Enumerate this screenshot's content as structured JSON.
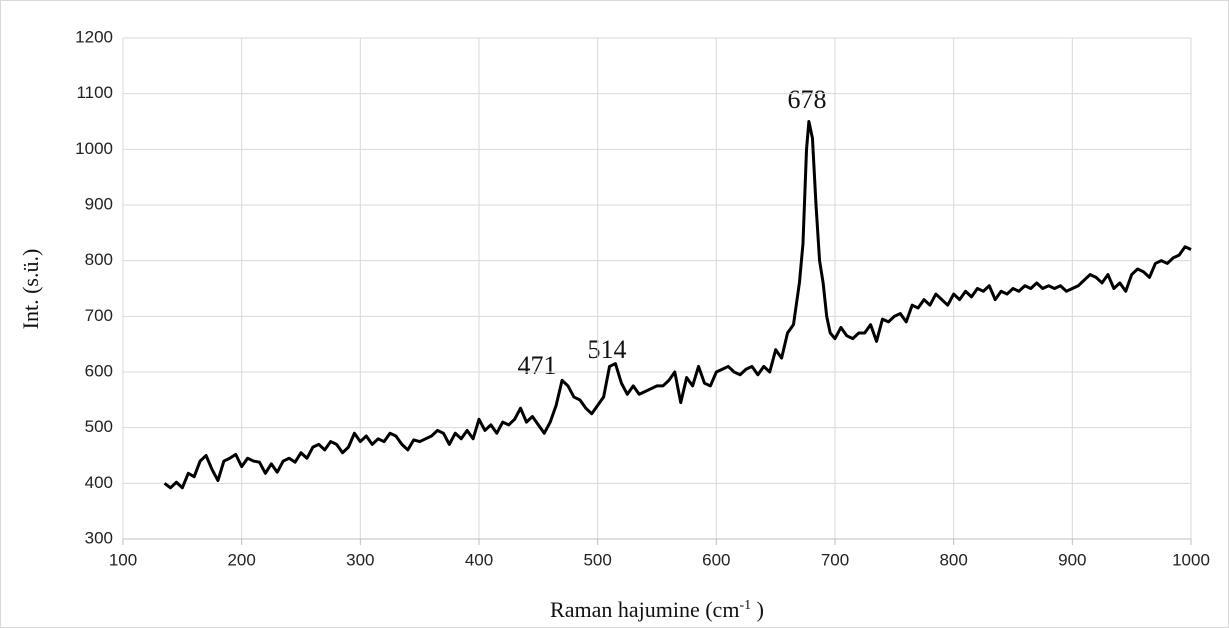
{
  "chart_data": {
    "type": "line",
    "xlabel": [
      "Raman hajumine (cm",
      "-1",
      " )"
    ],
    "ylabel": "Int. (s.ü.)",
    "annotations": [
      "678",
      "471",
      "514"
    ],
    "xlim": [
      100,
      1000
    ],
    "xticks": [
      100,
      200,
      300,
      400,
      500,
      600,
      700,
      800,
      900,
      1000
    ],
    "ylim": [
      300,
      1200
    ],
    "yticks": [
      300,
      400,
      500,
      600,
      700,
      800,
      900,
      1000,
      1100,
      1200
    ],
    "grid": true,
    "color": "#000000",
    "x": [
      135,
      140,
      145,
      150,
      155,
      160,
      165,
      170,
      175,
      180,
      185,
      190,
      195,
      200,
      205,
      210,
      215,
      220,
      225,
      230,
      235,
      240,
      245,
      250,
      255,
      260,
      265,
      270,
      275,
      280,
      285,
      290,
      295,
      300,
      305,
      310,
      315,
      320,
      325,
      330,
      335,
      340,
      345,
      350,
      355,
      360,
      365,
      370,
      375,
      380,
      385,
      390,
      395,
      400,
      405,
      410,
      415,
      420,
      425,
      430,
      435,
      440,
      445,
      450,
      455,
      460,
      465,
      470,
      475,
      480,
      485,
      490,
      495,
      500,
      505,
      510,
      515,
      520,
      525,
      530,
      535,
      540,
      545,
      550,
      555,
      560,
      565,
      570,
      575,
      580,
      585,
      590,
      595,
      600,
      605,
      610,
      615,
      620,
      625,
      630,
      635,
      640,
      645,
      650,
      655,
      660,
      665,
      670,
      673,
      676,
      678,
      681,
      684,
      687,
      690,
      693,
      696,
      700,
      705,
      710,
      715,
      720,
      725,
      730,
      735,
      740,
      745,
      750,
      755,
      760,
      765,
      770,
      775,
      780,
      785,
      790,
      795,
      800,
      805,
      810,
      815,
      820,
      825,
      830,
      835,
      840,
      845,
      850,
      855,
      860,
      865,
      870,
      875,
      880,
      885,
      890,
      895,
      900,
      905,
      910,
      915,
      920,
      925,
      930,
      935,
      940,
      945,
      950,
      955,
      960,
      965,
      970,
      975,
      980,
      985,
      990,
      995,
      1000
    ],
    "values": [
      400,
      392,
      402,
      392,
      418,
      412,
      440,
      450,
      425,
      405,
      440,
      445,
      452,
      430,
      445,
      440,
      438,
      418,
      435,
      420,
      440,
      445,
      438,
      455,
      445,
      465,
      470,
      460,
      475,
      470,
      455,
      465,
      490,
      475,
      485,
      470,
      480,
      475,
      490,
      485,
      470,
      460,
      478,
      475,
      480,
      485,
      495,
      490,
      470,
      490,
      480,
      495,
      480,
      515,
      495,
      505,
      490,
      510,
      505,
      515,
      535,
      510,
      520,
      505,
      490,
      510,
      540,
      585,
      575,
      555,
      550,
      535,
      525,
      540,
      555,
      610,
      615,
      580,
      560,
      575,
      560,
      565,
      570,
      575,
      575,
      585,
      600,
      545,
      590,
      575,
      610,
      580,
      575,
      600,
      605,
      610,
      600,
      595,
      605,
      610,
      595,
      610,
      600,
      640,
      625,
      670,
      685,
      760,
      830,
      1000,
      1050,
      1020,
      900,
      800,
      760,
      700,
      670,
      660,
      680,
      665,
      660,
      670,
      670,
      685,
      655,
      695,
      690,
      700,
      705,
      690,
      720,
      715,
      730,
      720,
      740,
      730,
      720,
      740,
      730,
      745,
      735,
      750,
      745,
      755,
      730,
      745,
      740,
      750,
      745,
      755,
      750,
      760,
      750,
      755,
      750,
      755,
      745,
      750,
      755,
      765,
      775,
      770,
      760,
      775,
      750,
      760,
      745,
      775,
      785,
      780,
      770,
      795,
      800,
      795,
      805,
      810,
      825,
      820
    ]
  }
}
